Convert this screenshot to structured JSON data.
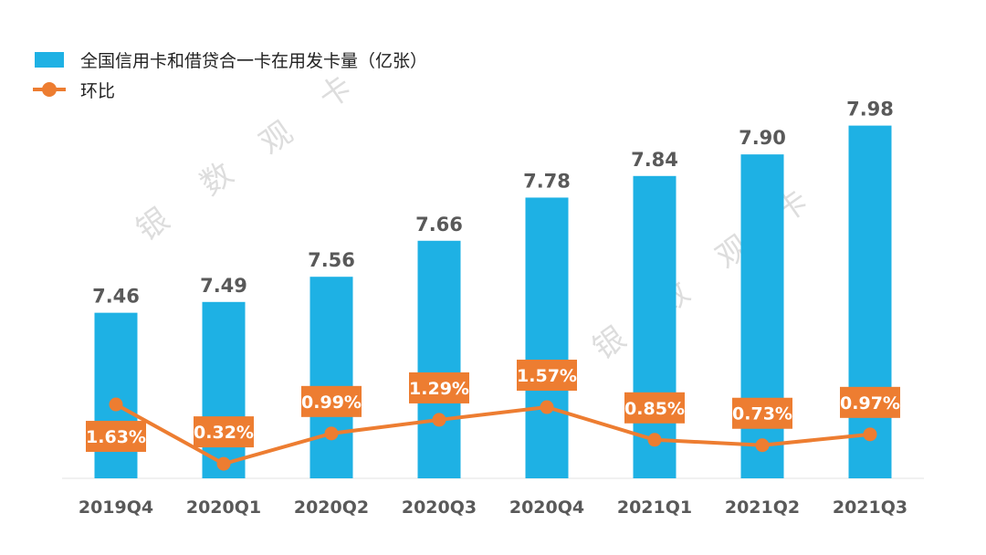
{
  "chart_data": {
    "type": "bar",
    "categories": [
      "2019Q4",
      "2020Q1",
      "2020Q2",
      "2020Q3",
      "2020Q4",
      "2021Q1",
      "2021Q2",
      "2021Q3"
    ],
    "series": [
      {
        "name": "全国信用卡和借贷合一卡在用发卡量（亿张）",
        "type": "bar",
        "values": [
          7.46,
          7.49,
          7.56,
          7.66,
          7.78,
          7.84,
          7.9,
          7.98
        ],
        "labels": [
          "7.46",
          "7.49",
          "7.56",
          "7.66",
          "7.78",
          "7.84",
          "7.90",
          "7.98"
        ]
      },
      {
        "name": "环比",
        "type": "line",
        "values": [
          1.63,
          0.32,
          0.99,
          1.29,
          1.57,
          0.85,
          0.73,
          0.97
        ],
        "labels": [
          "1.63%",
          "0.32%",
          "0.99%",
          "1.29%",
          "1.57%",
          "0.85%",
          "0.73%",
          "0.97%"
        ]
      }
    ],
    "bar_axis_range": [
      7.0,
      8.05
    ],
    "line_axis_range": [
      0.0,
      3.0
    ],
    "legend_position": "top-left",
    "grid": false,
    "colors": {
      "bar": "#1eb1e4",
      "line": "#ed7d31",
      "label_box": "#ed7d31",
      "text": "#595959"
    }
  },
  "watermark": [
    "银",
    "数",
    "观",
    "卡"
  ]
}
